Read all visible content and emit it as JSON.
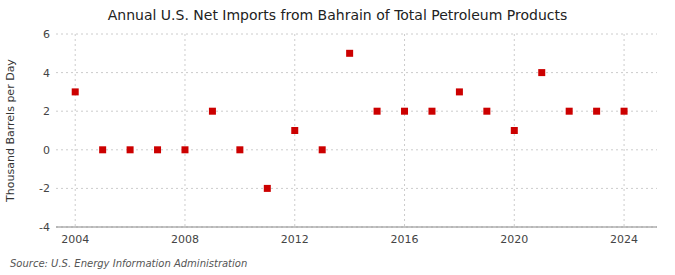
{
  "chart_data": {
    "type": "scatter",
    "title": "Annual U.S. Net Imports from Bahrain of Total Petroleum Products",
    "y_label": "Thousand Barrels per Day",
    "annotations": [
      "Source: U.S. Energy Information Administration"
    ],
    "x": [
      2004,
      2005,
      2006,
      2007,
      2008,
      2009,
      2010,
      2011,
      2012,
      2013,
      2014,
      2015,
      2016,
      2017,
      2018,
      2019,
      2020,
      2021,
      2022,
      2023,
      2024
    ],
    "values": [
      3,
      0,
      0,
      0,
      0,
      2,
      0,
      -2,
      1,
      0,
      5,
      2,
      2,
      2,
      3,
      2,
      1,
      4,
      2,
      2,
      2
    ],
    "color": "#cc0000",
    "marker": "square",
    "xlim": [
      2003.3,
      2025.2
    ],
    "xticks": [
      2004,
      2008,
      2012,
      2016,
      2020,
      2024
    ],
    "ylim": [
      -4,
      6
    ],
    "yticks": [
      -4,
      -2,
      0,
      2,
      4,
      6
    ],
    "grid": true
  }
}
